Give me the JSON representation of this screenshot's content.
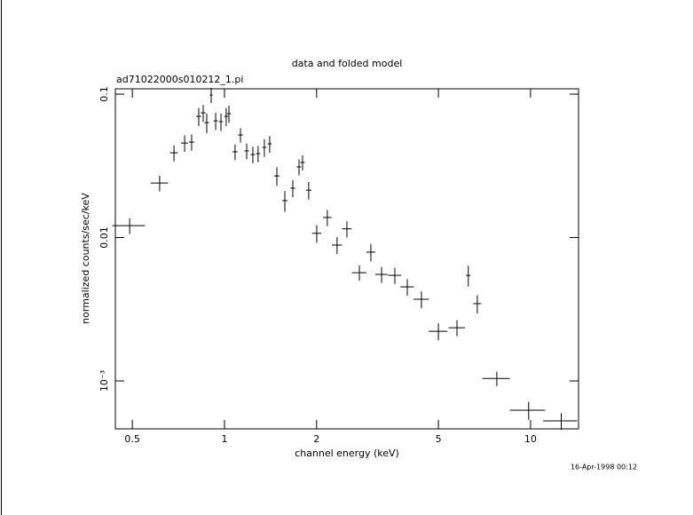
{
  "chart_data": {
    "type": "scatter",
    "title": "data and folded model",
    "subtitle": "ad71022000s010212_1.pi",
    "x_label": "channel energy (keV)",
    "y_label": "normalized counts/sec/keV",
    "annotation": "16-Apr-1998 00:12",
    "x_log": true,
    "y_log": true,
    "color": "#000000",
    "xlim": [
      0.44,
      14.35
    ],
    "ylim": [
      0.000463,
      0.109
    ],
    "xticks": [
      0.5,
      1,
      2,
      5,
      10
    ],
    "yticks": [
      0.1,
      0.01,
      {
        "value": 0.001,
        "label": "10⁻³"
      }
    ],
    "x": [
      0.49,
      0.614,
      0.684,
      0.741,
      0.781,
      0.824,
      0.852,
      0.875,
      0.905,
      0.936,
      0.974,
      1.013,
      1.034,
      1.083,
      1.128,
      1.182,
      1.238,
      1.288,
      1.35,
      1.405,
      1.483,
      1.575,
      1.672,
      1.752,
      1.799,
      1.884,
      2.002,
      2.168,
      2.333,
      2.512,
      2.759,
      3.008,
      3.261,
      3.603,
      3.956,
      4.4,
      5.0,
      5.75,
      6.26,
      6.7,
      7.76,
      9.86,
      12.6
    ],
    "xerr": [
      0.06,
      0.04,
      0.02,
      0.02,
      0.015,
      0.015,
      0.015,
      0.015,
      0.01,
      0.015,
      0.015,
      0.015,
      0.015,
      0.02,
      0.02,
      0.02,
      0.02,
      0.02,
      0.02,
      0.02,
      0.03,
      0.03,
      0.03,
      0.03,
      0.03,
      0.04,
      0.07,
      0.07,
      0.09,
      0.09,
      0.15,
      0.1,
      0.15,
      0.18,
      0.2,
      0.25,
      0.35,
      0.35,
      0.1,
      0.2,
      0.8,
      1.3,
      1.6
    ],
    "values": [
      0.0121,
      0.024,
      0.039,
      0.0456,
      0.0463,
      0.07,
      0.0741,
      0.0634,
      0.0986,
      0.0652,
      0.0643,
      0.07,
      0.0731,
      0.0396,
      0.0519,
      0.0402,
      0.0379,
      0.0385,
      0.0425,
      0.045,
      0.0269,
      0.0181,
      0.0221,
      0.0311,
      0.0334,
      0.0214,
      0.0107,
      0.0138,
      0.00886,
      0.0115,
      0.00569,
      0.00791,
      0.00553,
      0.00545,
      0.00453,
      0.00371,
      0.00222,
      0.00235,
      0.00545,
      0.00346,
      0.00104,
      0.000625,
      0.000526
    ],
    "yerr": [
      0.0015,
      0.003,
      0.005,
      0.006,
      0.006,
      0.01,
      0.01,
      0.01,
      0.012,
      0.009,
      0.009,
      0.01,
      0.01,
      0.005,
      0.006,
      0.005,
      0.005,
      0.005,
      0.006,
      0.006,
      0.004,
      0.003,
      0.003,
      0.004,
      0.004,
      0.003,
      0.0015,
      0.0018,
      0.0012,
      0.0015,
      0.0007,
      0.0011,
      0.0007,
      0.0007,
      0.0006,
      0.0005,
      0.0003,
      0.0003,
      0.0009,
      0.0005,
      0.00012,
      9e-05,
      7e-05
    ]
  }
}
